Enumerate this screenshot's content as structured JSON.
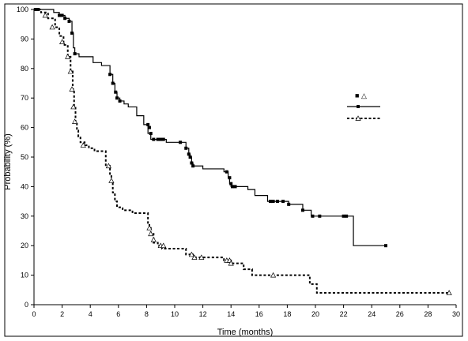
{
  "chart_data": {
    "type": "line",
    "step": true,
    "xlabel": "Time (months)",
    "ylabel": "Probability (%)",
    "xlim": [
      0,
      30
    ],
    "ylim": [
      0,
      100
    ],
    "xticks": [
      "0",
      "2",
      "4",
      "6",
      "8",
      "10",
      "12",
      "14",
      "16",
      "18",
      "20",
      "22",
      "24",
      "26",
      "28",
      "30"
    ],
    "yticks": [
      "0",
      "10",
      "20",
      "30",
      "40",
      "50",
      "60",
      "70",
      "80",
      "90",
      "100"
    ],
    "grid": false,
    "legend": {
      "placement": "right",
      "header_symbols": [
        "■",
        "△"
      ]
    },
    "series": [
      {
        "style": "solid",
        "marker": "filled-square",
        "color": "#000000",
        "x": [
          0,
          1.4,
          1.8,
          2.2,
          2.5,
          2.7,
          2.8,
          2.9,
          3.2,
          4.2,
          4.8,
          5.4,
          5.6,
          5.75,
          5.9,
          6.1,
          6.4,
          6.7,
          7.3,
          7.8,
          8.1,
          8.3,
          8.5,
          8.7,
          9.4,
          10.1,
          10.8,
          11.0,
          11.1,
          11.2,
          11.3,
          12.0,
          13.5,
          13.8,
          13.9,
          14.0,
          14.1,
          15.2,
          15.7,
          16.6,
          18.1,
          19.1,
          19.7,
          22.7,
          25.0
        ],
        "y": [
          100,
          99,
          98,
          97,
          96,
          92,
          87,
          85,
          84,
          82,
          81,
          78,
          75,
          72,
          70,
          69,
          68,
          67,
          64,
          61,
          58,
          56,
          56,
          56,
          55,
          55,
          53,
          51,
          50,
          48,
          47,
          46,
          45,
          43,
          41,
          40,
          40,
          39,
          37,
          35,
          34,
          32,
          30,
          20,
          20
        ],
        "markers_x": [
          0.1,
          0.3,
          1.8,
          2.0,
          2.2,
          2.5,
          2.7,
          2.9,
          5.4,
          5.6,
          5.8,
          5.9,
          6.1,
          8.1,
          8.2,
          8.3,
          8.5,
          8.8,
          9.0,
          9.2,
          10.4,
          10.8,
          11.0,
          11.1,
          11.2,
          11.3,
          13.7,
          13.9,
          14.0,
          14.1,
          14.3,
          16.8,
          17.0,
          17.3,
          17.7,
          18.1,
          19.1,
          19.8,
          20.3,
          22.0,
          22.2,
          25.0
        ],
        "markers_y": [
          100,
          100,
          98,
          98,
          97,
          96,
          92,
          85,
          78,
          75,
          72,
          70,
          69,
          61,
          60,
          58,
          56,
          56,
          56,
          56,
          55,
          53,
          51,
          50,
          48,
          47,
          45,
          43,
          41,
          40,
          40,
          35,
          35,
          35,
          35,
          34,
          32,
          30,
          30,
          30,
          30,
          20
        ]
      },
      {
        "style": "dashed",
        "marker": "open-triangle",
        "color": "#000000",
        "x": [
          0,
          0.5,
          1.0,
          1.5,
          1.8,
          2.1,
          2.4,
          2.6,
          2.75,
          2.85,
          2.95,
          3.05,
          3.15,
          3.3,
          3.6,
          3.9,
          4.3,
          5.1,
          5.4,
          5.5,
          5.6,
          5.75,
          5.9,
          6.3,
          7.0,
          8.1,
          8.2,
          8.3,
          8.5,
          8.8,
          9.1,
          10.8,
          11.3,
          12.6,
          13.5,
          13.8,
          14.0,
          14.9,
          15.0,
          15.5,
          16.9,
          17.6,
          19.6,
          20.1,
          24.6,
          29.5
        ],
        "y": [
          100,
          99,
          97,
          94,
          91,
          88,
          84,
          79,
          73,
          67,
          62,
          59,
          57,
          55,
          54,
          53,
          52,
          47,
          44,
          42,
          38,
          35,
          33,
          32,
          31,
          27,
          26,
          24,
          21,
          20,
          19,
          17,
          16,
          16,
          15,
          15,
          14,
          12,
          12,
          10,
          10,
          10,
          7,
          4,
          4,
          4
        ],
        "markers_x": [
          0.8,
          1.3,
          2.0,
          2.4,
          2.6,
          2.7,
          2.8,
          2.9,
          3.5,
          5.3,
          5.5,
          8.2,
          8.3,
          8.5,
          9.0,
          9.2,
          11.2,
          11.4,
          11.9,
          13.7,
          13.9,
          14.0,
          17.0,
          29.5
        ],
        "markers_y": [
          98,
          94,
          89,
          84,
          79,
          73,
          67,
          62,
          54,
          47,
          42,
          26,
          24,
          22,
          20,
          20,
          17,
          16,
          16,
          15,
          15,
          14,
          10,
          4
        ]
      }
    ]
  }
}
